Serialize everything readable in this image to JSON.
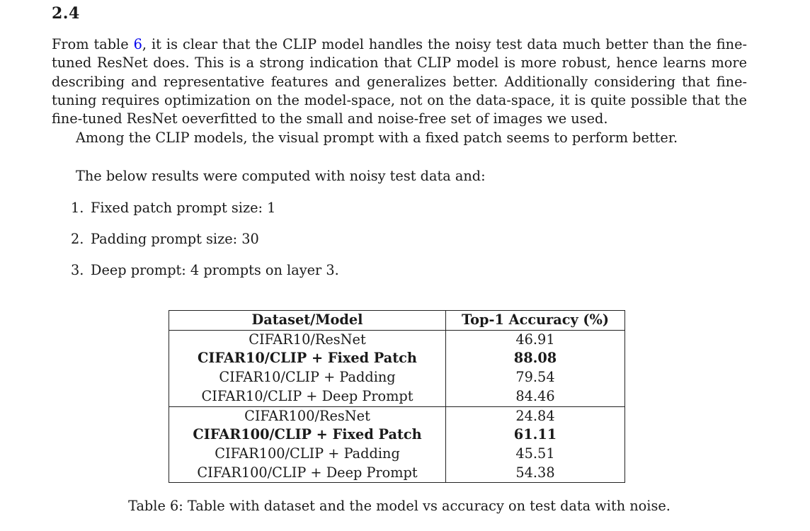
{
  "section": {
    "number": "2.4"
  },
  "paragraph1": {
    "before_ref": "From table ",
    "ref": "6",
    "after_ref": ", it is clear that the CLIP model handles the noisy test data much better than the fine-tuned ResNet does. This is a strong indication that CLIP model is more robust, hence learns more describing and representative features and generalizes better. Additionally considering that fine-tuning requires optimization on the model-space, not on the data-space, it is quite possible that the fine-tuned ResNet oeverfitted to the small and noise-free set of images we used."
  },
  "paragraph2": "Among the CLIP models, the visual prompt with a fixed patch seems to perform better.",
  "paragraph3": "The below results were computed with noisy test data and:",
  "enumeration": [
    {
      "num": "1.",
      "text": "Fixed patch prompt size: 1"
    },
    {
      "num": "2.",
      "text": "Padding prompt size: 30"
    },
    {
      "num": "3.",
      "text": "Deep prompt: 4 prompts on layer 3."
    }
  ],
  "table": {
    "headers": [
      "Dataset/Model",
      "Top-1 Accuracy (%)"
    ],
    "rows": [
      {
        "model": "CIFAR10/ResNet",
        "accuracy": "46.91"
      },
      {
        "model": "CIFAR10/CLIP + Fixed Patch",
        "accuracy": "88.08"
      },
      {
        "model": "CIFAR10/CLIP + Padding",
        "accuracy": "79.54"
      },
      {
        "model": "CIFAR10/CLIP + Deep Prompt",
        "accuracy": "84.46"
      },
      {
        "model": "CIFAR100/ResNet",
        "accuracy": "24.84"
      },
      {
        "model": "CIFAR100/CLIP + Fixed Patch",
        "accuracy": "61.11"
      },
      {
        "model": "CIFAR100/CLIP + Padding",
        "accuracy": "45.51"
      },
      {
        "model": "CIFAR100/CLIP + Deep Prompt",
        "accuracy": "54.38"
      }
    ]
  },
  "caption": "Table 6: Table with dataset and the model vs accuracy on test data with noise."
}
